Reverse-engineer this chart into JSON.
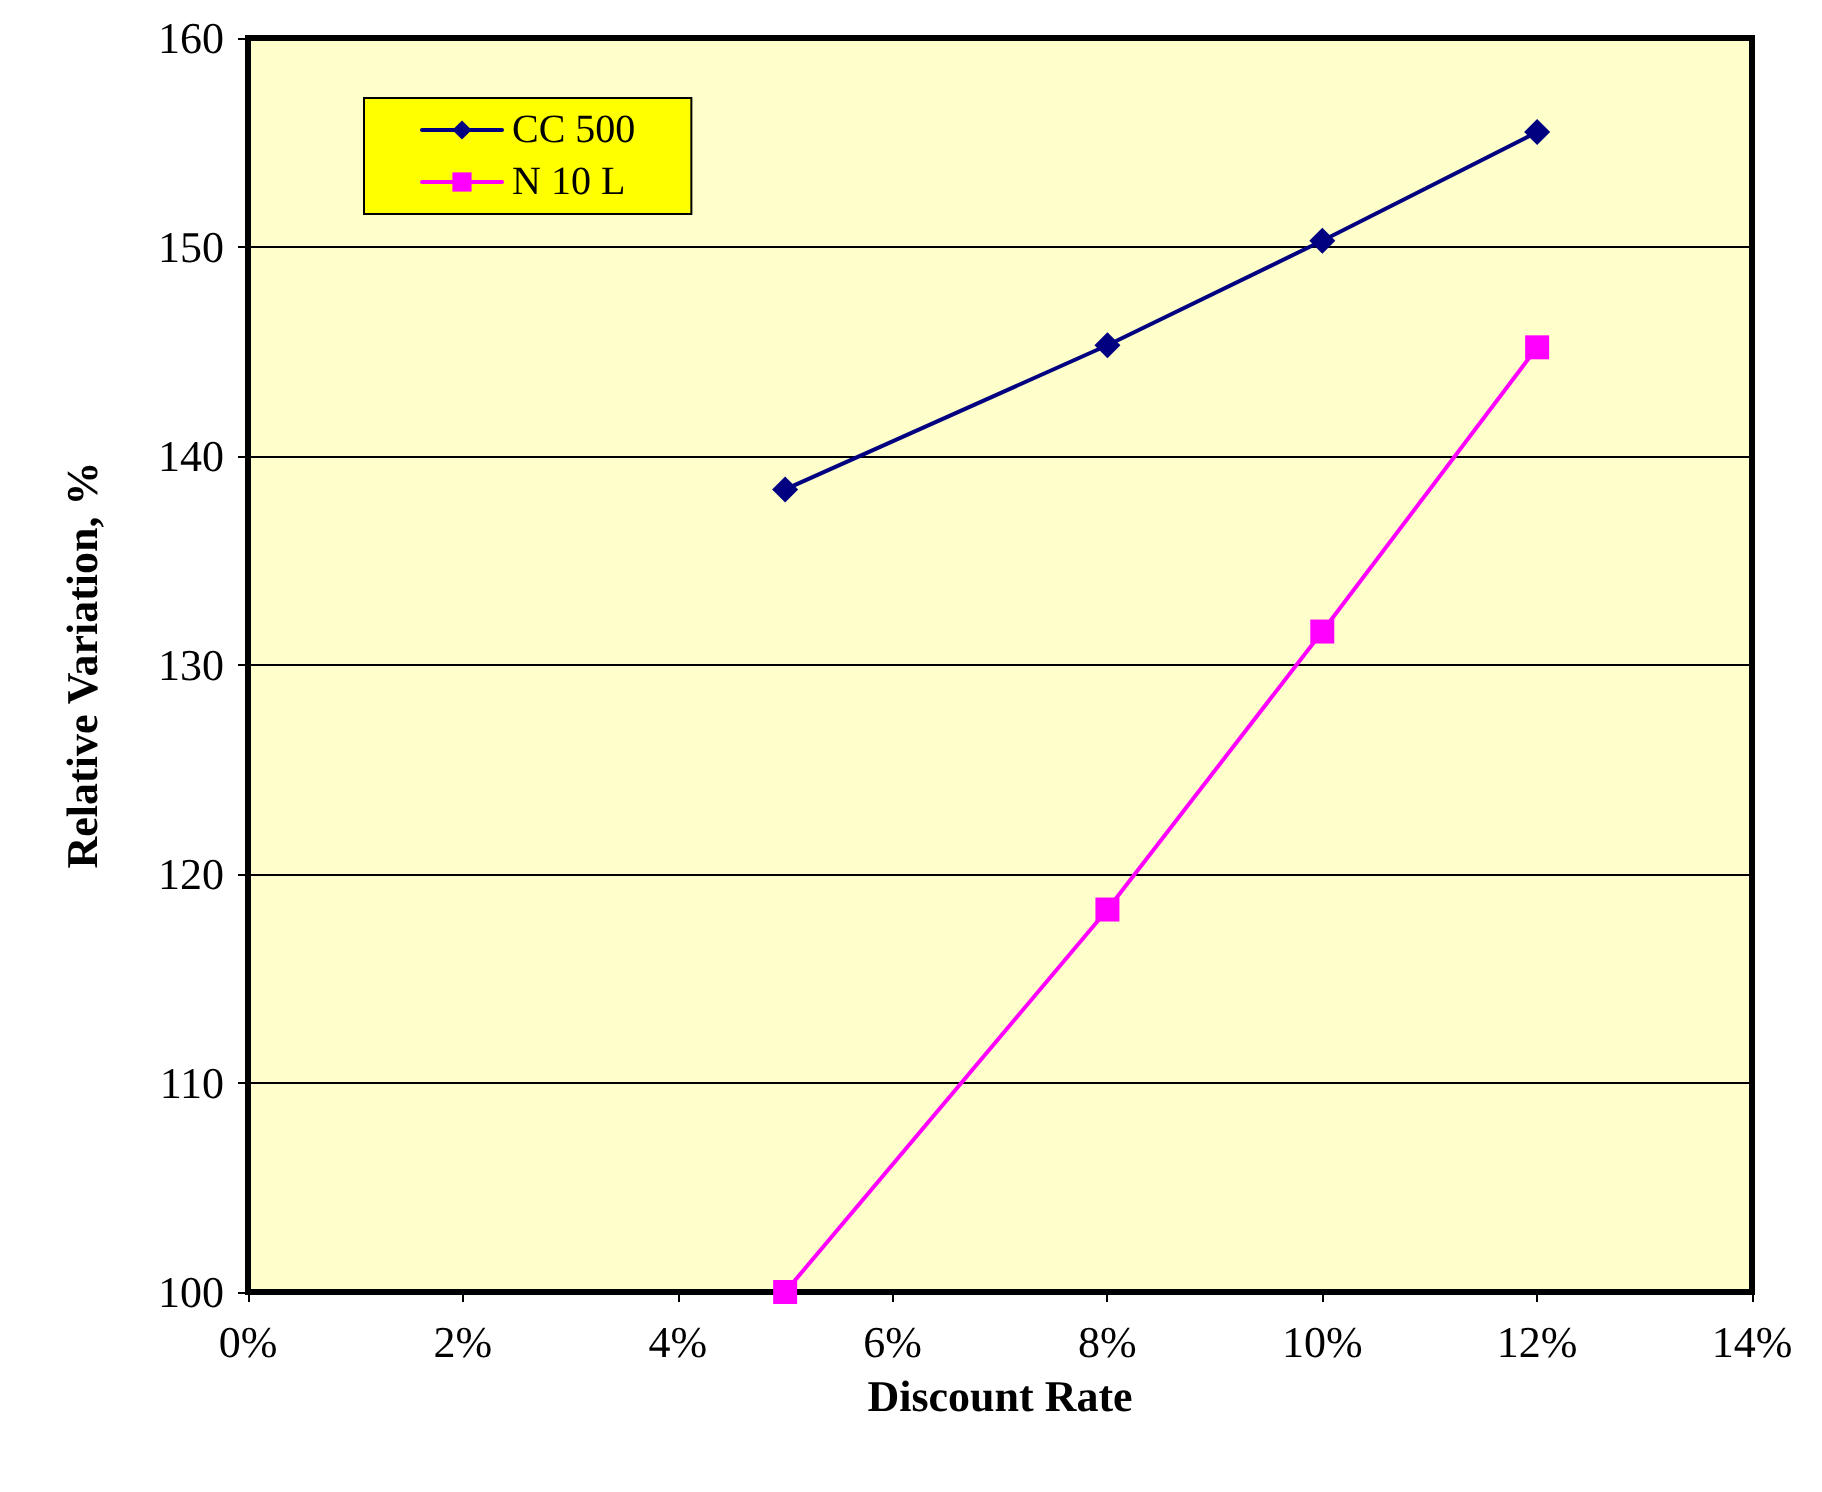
{
  "chart_data": {
    "type": "line",
    "xlabel": "Discount Rate",
    "ylabel": "Relative Variation, %",
    "x": [
      5,
      8,
      10,
      12
    ],
    "series": [
      {
        "name": "CC 500",
        "color": "#000080",
        "marker": "diamond",
        "values": [
          138.4,
          145.3,
          150.3,
          155.5
        ]
      },
      {
        "name": "N 10 L",
        "color": "#ff00ff",
        "marker": "square",
        "values": [
          100,
          118.3,
          131.6,
          145.2
        ]
      }
    ],
    "xlim": [
      0,
      14
    ],
    "xticks": [
      {
        "value": 0,
        "label": "0%"
      },
      {
        "value": 2,
        "label": "2%"
      },
      {
        "value": 4,
        "label": "4%"
      },
      {
        "value": 6,
        "label": "6%"
      },
      {
        "value": 8,
        "label": "8%"
      },
      {
        "value": 10,
        "label": "10%"
      },
      {
        "value": 12,
        "label": "12%"
      },
      {
        "value": 14,
        "label": "14%"
      }
    ],
    "ylim": [
      100,
      160
    ],
    "yticks": [
      100,
      110,
      120,
      130,
      140,
      150,
      160
    ],
    "grid": "y",
    "legend": "top left",
    "line_style": "solid"
  }
}
